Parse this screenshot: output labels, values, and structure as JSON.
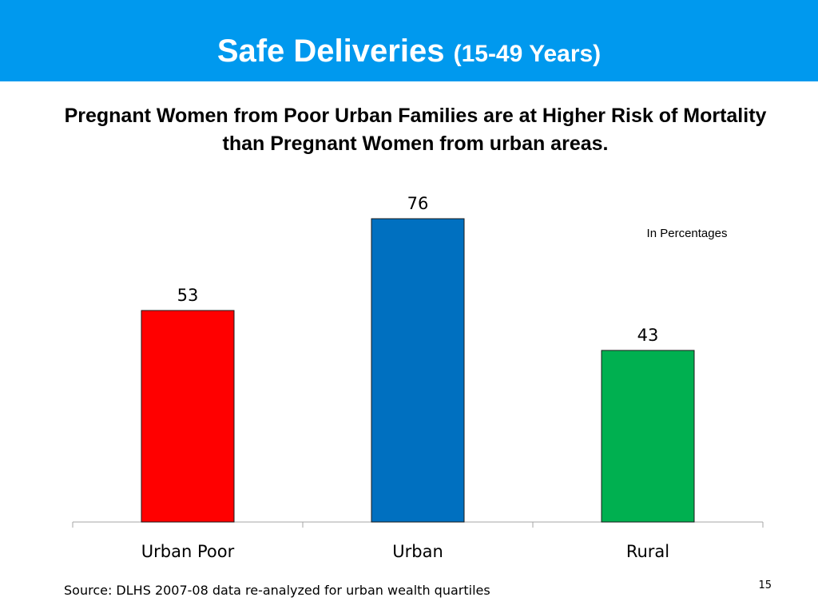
{
  "header": {
    "title": "Safe Deliveries",
    "title_sub": "(15-49 Years)"
  },
  "subtitle": "Pregnant Women from Poor Urban Families are at Higher Risk of Mortality than  Pregnant Women from urban areas.",
  "unit_note": "In Percentages",
  "source": "Source: DLHS 2007-08 data re-analyzed for urban wealth quartiles",
  "page_number": "15",
  "colors": {
    "header_bg": "#0099ee",
    "urban_poor": "#ff0000",
    "urban": "#0070c0",
    "rural": "#00b050"
  },
  "chart_data": {
    "type": "bar",
    "categories": [
      "Urban Poor",
      "Urban",
      "Rural"
    ],
    "values": [
      53,
      76,
      43
    ],
    "colors": [
      "#ff0000",
      "#0070c0",
      "#00b050"
    ],
    "data_labels": [
      "53",
      "76",
      "43"
    ],
    "ylim": [
      0,
      100
    ],
    "grid": false,
    "legend": "none"
  }
}
